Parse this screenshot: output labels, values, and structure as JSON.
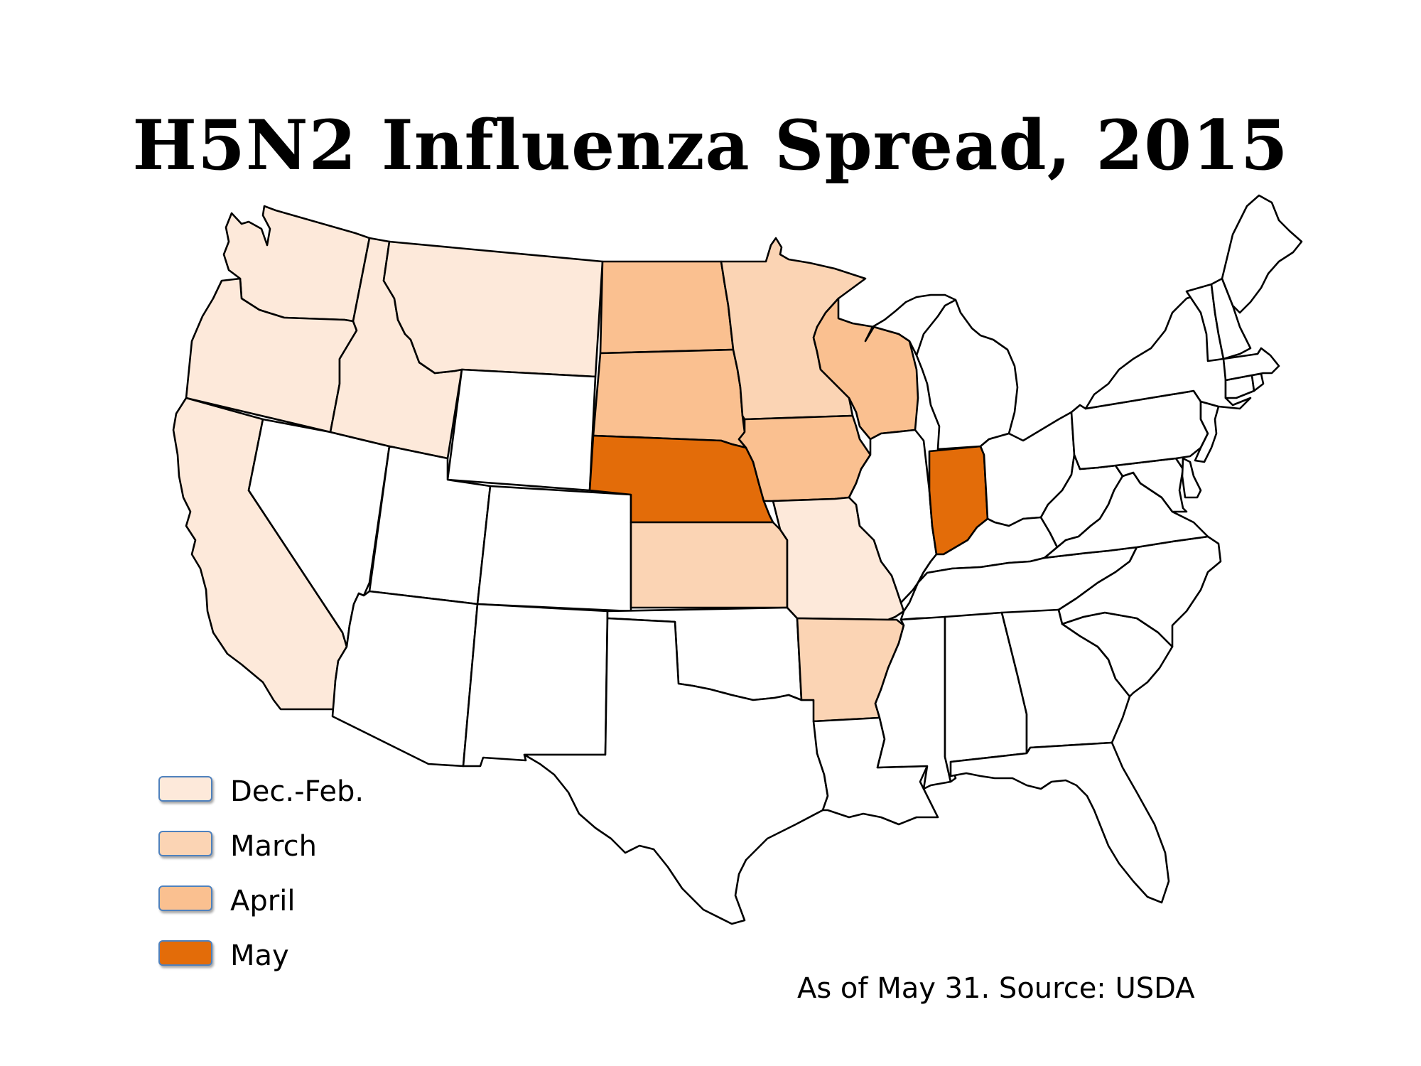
{
  "title": "H5N2 Influenza Spread, 2015",
  "source_note": "As of May 31.  Source: USDA",
  "colors": {
    "dec_feb": "#fde9da",
    "march": "#fbd4b4",
    "april": "#fac090",
    "may": "#e36c09",
    "none": "#ffffff",
    "outline": "#000000",
    "legend_border": "#4f81bd"
  },
  "legend": [
    {
      "label": "Dec.-Feb.",
      "period": "dec_feb"
    },
    {
      "label": "March",
      "period": "march"
    },
    {
      "label": "April",
      "period": "april"
    },
    {
      "label": "May",
      "period": "may"
    }
  ],
  "states": {
    "WA": "dec_feb",
    "OR": "dec_feb",
    "CA": "dec_feb",
    "ID": "dec_feb",
    "MT": "dec_feb",
    "MO": "dec_feb",
    "MN": "march",
    "KS": "march",
    "AR": "march",
    "ND": "april",
    "SD": "april",
    "IA": "april",
    "WI": "april",
    "NE": "may",
    "IN": "may",
    "NV": "none",
    "UT": "none",
    "AZ": "none",
    "WY": "none",
    "CO": "none",
    "NM": "none",
    "TX": "none",
    "OK": "none",
    "LA": "none",
    "MS": "none",
    "AL": "none",
    "GA": "none",
    "FL": "none",
    "SC": "none",
    "NC": "none",
    "TN": "none",
    "KY": "none",
    "IL": "none",
    "MI": "none",
    "OH": "none",
    "WV": "none",
    "VA": "none",
    "MD": "none",
    "DE": "none",
    "PA": "none",
    "NJ": "none",
    "NY": "none",
    "CT": "none",
    "RI": "none",
    "MA": "none",
    "VT": "none",
    "NH": "none",
    "ME": "none"
  }
}
